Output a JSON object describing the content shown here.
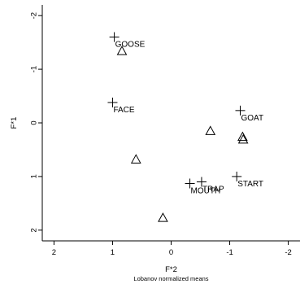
{
  "chart_data": {
    "type": "scatter",
    "xlabel": "F*2",
    "xlabel_sub": "Lobanov normalized means",
    "ylabel": "F*1",
    "xlim": [
      2.2,
      -2.2
    ],
    "ylim": [
      -2.2,
      2.2
    ],
    "x_reversed": true,
    "y_reversed": true,
    "x_ticks": [
      {
        "value": 2,
        "label": "2"
      },
      {
        "value": 1,
        "label": "1"
      },
      {
        "value": 0,
        "label": "0"
      },
      {
        "value": -1,
        "label": "-1"
      },
      {
        "value": -2,
        "label": "-2"
      }
    ],
    "y_ticks": [
      {
        "value": -2,
        "label": "-2"
      },
      {
        "value": -1,
        "label": "-1"
      },
      {
        "value": 0,
        "label": "0"
      },
      {
        "value": 1,
        "label": "1"
      },
      {
        "value": 2,
        "label": "2"
      }
    ],
    "series": [
      {
        "marker": "plus",
        "points": [
          {
            "x": 0.97,
            "y": -1.6,
            "label": "GOOSE"
          },
          {
            "x": 1.0,
            "y": -0.38,
            "label": "FACE"
          },
          {
            "x": -1.18,
            "y": -0.23,
            "label": "GOAT"
          },
          {
            "x": -1.12,
            "y": 1.0,
            "label": "START"
          },
          {
            "x": -0.52,
            "y": 1.1,
            "label": "TRAP"
          },
          {
            "x": -0.32,
            "y": 1.13,
            "label": "MOUTH"
          }
        ]
      },
      {
        "marker": "triangle",
        "points": [
          {
            "x": 0.84,
            "y": -1.34
          },
          {
            "x": -0.67,
            "y": 0.15
          },
          {
            "x": -1.22,
            "y": 0.26
          },
          {
            "x": -1.23,
            "y": 0.31
          },
          {
            "x": 0.6,
            "y": 0.68
          },
          {
            "x": 0.14,
            "y": 1.77
          }
        ]
      }
    ]
  }
}
